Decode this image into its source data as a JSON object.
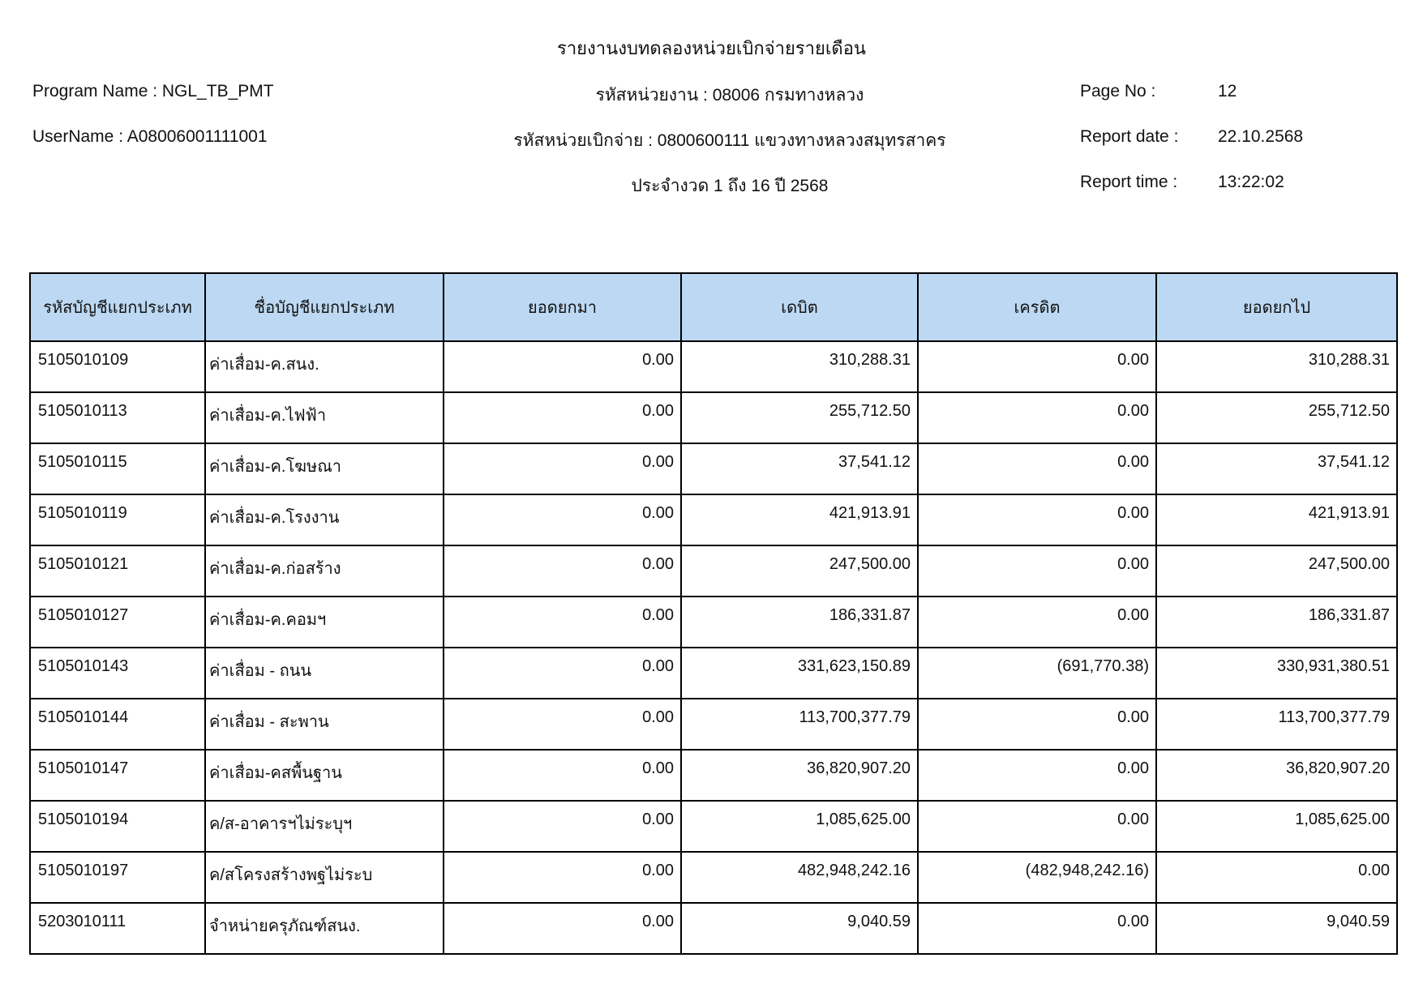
{
  "report": {
    "title": "รายงานงบทดลองหน่วยเบิกจ่ายรายเดือน",
    "program_name_line": "Program Name : NGL_TB_PMT",
    "username_line": "UserName : A08006001111001",
    "agency_line": "รหัสหน่วยงาน : 08006 กรมทางหลวง",
    "disbursing_unit_line": "รหัสหน่วยเบิกจ่าย : 0800600111 แขวงทางหลวงสมุทรสาคร",
    "period_line": "ประจำงวด 1 ถึง 16 ปี 2568",
    "page_no_label": "Page No :",
    "page_no": "12",
    "report_date_label": "Report date :",
    "report_date": "22.10.2568",
    "report_time_label": "Report time :",
    "report_time": "13:22:02"
  },
  "colors": {
    "header_bg": "#BCD8F2",
    "border": "#000000"
  },
  "table": {
    "columns": [
      "รหัสบัญชีแยกประเภท",
      "ชื่อบัญชีแยกประเภท",
      "ยอดยกมา",
      "เดบิต",
      "เครดิต",
      "ยอดยกไป"
    ],
    "rows": [
      [
        "5105010109",
        "ค่าเสื่อม-ค.สนง.",
        "0.00",
        "310,288.31",
        "0.00",
        "310,288.31"
      ],
      [
        "5105010113",
        "ค่าเสื่อม-ค.ไฟฟ้า",
        "0.00",
        "255,712.50",
        "0.00",
        "255,712.50"
      ],
      [
        "5105010115",
        "ค่าเสื่อม-ค.โฆษณา",
        "0.00",
        "37,541.12",
        "0.00",
        "37,541.12"
      ],
      [
        "5105010119",
        "ค่าเสื่อม-ค.โรงงาน",
        "0.00",
        "421,913.91",
        "0.00",
        "421,913.91"
      ],
      [
        "5105010121",
        "ค่าเสื่อม-ค.ก่อสร้าง",
        "0.00",
        "247,500.00",
        "0.00",
        "247,500.00"
      ],
      [
        "5105010127",
        "ค่าเสื่อม-ค.คอมฯ",
        "0.00",
        "186,331.87",
        "0.00",
        "186,331.87"
      ],
      [
        "5105010143",
        "ค่าเสื่อม - ถนน",
        "0.00",
        "331,623,150.89",
        "(691,770.38)",
        "330,931,380.51"
      ],
      [
        "5105010144",
        "ค่าเสื่อม - สะพาน",
        "0.00",
        "113,700,377.79",
        "0.00",
        "113,700,377.79"
      ],
      [
        "5105010147",
        "ค่าเสื่อม-คสพื้นฐาน",
        "0.00",
        "36,820,907.20",
        "0.00",
        "36,820,907.20"
      ],
      [
        "5105010194",
        "ค/ส-อาคารฯไม่ระบุฯ",
        "0.00",
        "1,085,625.00",
        "0.00",
        "1,085,625.00"
      ],
      [
        "5105010197",
        "ค/สโครงสร้างพฐไม่ระบ",
        "0.00",
        "482,948,242.16",
        "(482,948,242.16)",
        "0.00"
      ],
      [
        "5203010111",
        "จำหน่ายครุภัณฑ์สนง.",
        "0.00",
        "9,040.59",
        "0.00",
        "9,040.59"
      ]
    ]
  }
}
